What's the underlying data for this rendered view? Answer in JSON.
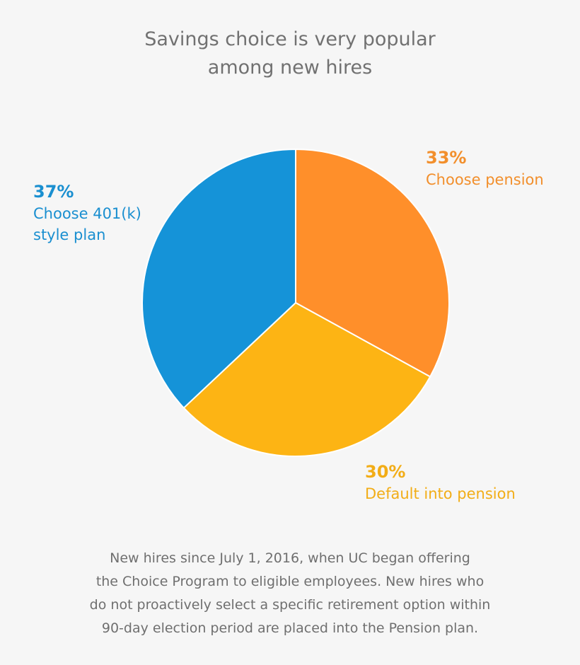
{
  "chart_data": {
    "type": "pie",
    "title": [
      "Savings choice is very popular",
      "among new hires"
    ],
    "slices": [
      {
        "label": "Choose pension",
        "value": 33,
        "value_text": "33%",
        "color": "#ff8f2a"
      },
      {
        "label": "Default into pension",
        "value": 30,
        "value_text": "30%",
        "color": "#fdb414"
      },
      {
        "label_lines": [
          "Choose 401(k)",
          "style plan"
        ],
        "value": 37,
        "value_text": "37%",
        "color": "#1593d8"
      }
    ],
    "footnote": [
      "New hires since July 1, 2016, when UC began offering",
      "the Choice Program to eligible employees. New hires who",
      "do not proactively select a specific retirement option within",
      "90-day election period are placed into the Pension plan."
    ]
  }
}
